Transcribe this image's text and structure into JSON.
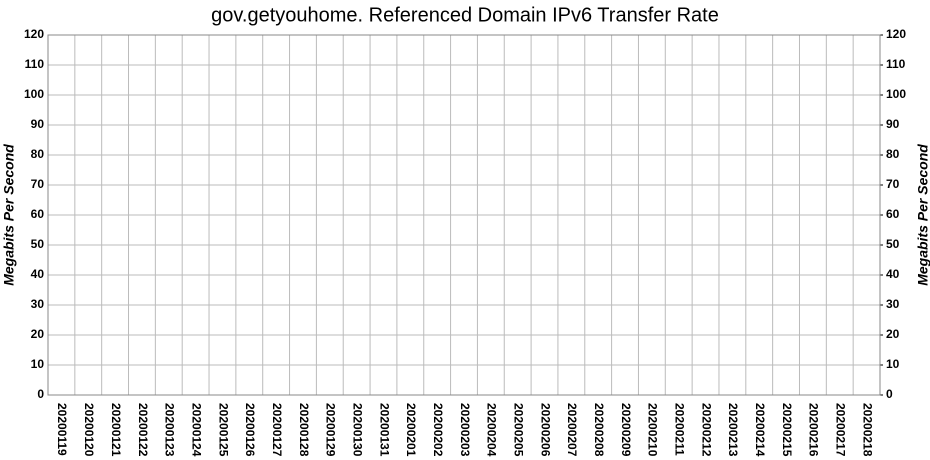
{
  "chart_data": {
    "type": "bar",
    "title": "gov.getyouhome. Referenced Domain IPv6 Transfer Rate",
    "y_label": "Megabits Per Second",
    "y2_label": "Megabits Per Second",
    "categories": [
      "20200119",
      "20200120",
      "20200121",
      "20200122",
      "20200123",
      "20200124",
      "20200125",
      "20200126",
      "20200127",
      "20200128",
      "20200129",
      "20200130",
      "20200131",
      "20200201",
      "20200202",
      "20200203",
      "20200204",
      "20200205",
      "20200206",
      "20200207",
      "20200208",
      "20200209",
      "20200210",
      "20200211",
      "20200212",
      "20200213",
      "20200214",
      "20200215",
      "20200216",
      "20200217",
      "20200218"
    ],
    "values": [
      0,
      0,
      0,
      0,
      0,
      0,
      0,
      0,
      0,
      0,
      0,
      0,
      0,
      0,
      0,
      0,
      0,
      0,
      0,
      0,
      0,
      0,
      0,
      0,
      0,
      0,
      0,
      0,
      0,
      0,
      0
    ],
    "color": "#000080",
    "ylim": [
      0,
      120
    ],
    "yticks": [
      0,
      10,
      20,
      30,
      40,
      50,
      60,
      70,
      80,
      90,
      100,
      110,
      120
    ],
    "y2lim": [
      0,
      120
    ],
    "y2ticks": [
      0,
      10,
      20,
      30,
      40,
      50,
      60,
      70,
      80,
      90,
      100,
      110,
      120
    ],
    "grid": true
  }
}
